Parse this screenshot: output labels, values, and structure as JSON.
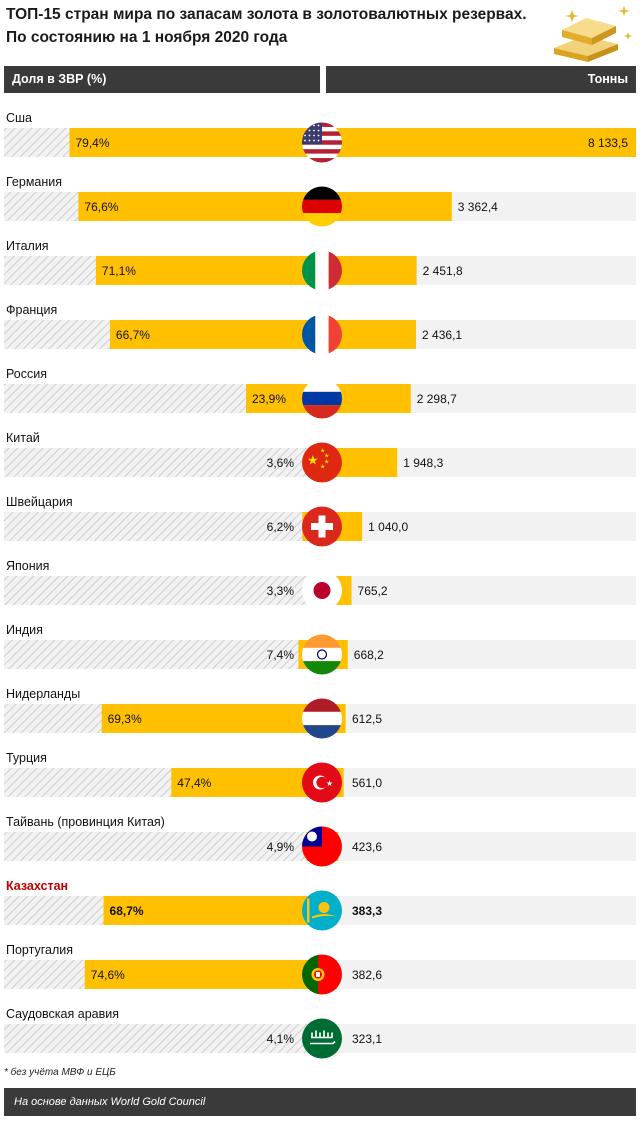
{
  "title_line1": "ТОП-15 стран мира по запасам золота в золотовалютных резервах.",
  "title_line2": "По состоянию на 1 ноября 2020 года",
  "header_left": "Доля в ЗВР (%)",
  "header_right": "Тонны",
  "footnote": "* без учёта МВФ и ЕЦБ",
  "footer": "На основе данных World Gold Council",
  "colors": {
    "gold": "#FFC000",
    "hatch_bg": "#F2F2F2",
    "hatch_line": "#CFCFCF",
    "track": "#F2F2F2",
    "highlight_label": "#C00000",
    "header_bg": "#3A3A3A"
  },
  "chart_data": {
    "type": "bar",
    "categories": [
      "Сша",
      "Германия",
      "Италия",
      "Франция",
      "Россия",
      "Китай",
      "Швейцария",
      "Япония",
      "Индия",
      "Нидерланды",
      "Турция",
      "Тайвань (провинция Китая)",
      "Казахстан",
      "Португалия",
      "Саудовская аравия"
    ],
    "share_labels": [
      "79,4%",
      "76,6%",
      "71,1%",
      "66,7%",
      "23,9%",
      "3,6%",
      "6,2%",
      "3,3%",
      "7,4%",
      "69,3%",
      "47,4%",
      "4,9%",
      "68,7%",
      "74,6%",
      "4,1%"
    ],
    "tonnes_labels": [
      "8 133,5",
      "3 362,4",
      "2 451,8",
      "2 436,1",
      "2 298,7",
      "1 948,3",
      "1 040,0",
      "765,2",
      "668,2",
      "612,5",
      "561,0",
      "423,6",
      "383,3",
      "382,6",
      "323,1"
    ],
    "series": [
      {
        "name": "Доля в ЗВР (%)",
        "values": [
          79.4,
          76.6,
          71.1,
          66.7,
          23.9,
          3.6,
          6.2,
          3.3,
          7.4,
          69.3,
          47.4,
          4.9,
          68.7,
          74.6,
          4.1
        ]
      },
      {
        "name": "Тонны",
        "values": [
          8133.5,
          3362.4,
          2451.8,
          2436.1,
          2298.7,
          1948.3,
          1040.0,
          765.2,
          668.2,
          612.5,
          561.0,
          423.6,
          383.3,
          382.6,
          323.1
        ]
      }
    ],
    "highlight": "Казахстан",
    "flags": [
      "us-flag-icon",
      "germany-flag-icon",
      "italy-flag-icon",
      "france-flag-icon",
      "russia-flag-icon",
      "china-flag-icon",
      "switzerland-flag-icon",
      "japan-flag-icon",
      "india-flag-icon",
      "netherlands-flag-icon",
      "turkey-flag-icon",
      "taiwan-flag-icon",
      "kazakhstan-flag-icon",
      "portugal-flag-icon",
      "saudi-arabia-flag-icon"
    ],
    "xlim_share": [
      0,
      100
    ],
    "xlim_tonnes": [
      0,
      8133.5
    ]
  }
}
